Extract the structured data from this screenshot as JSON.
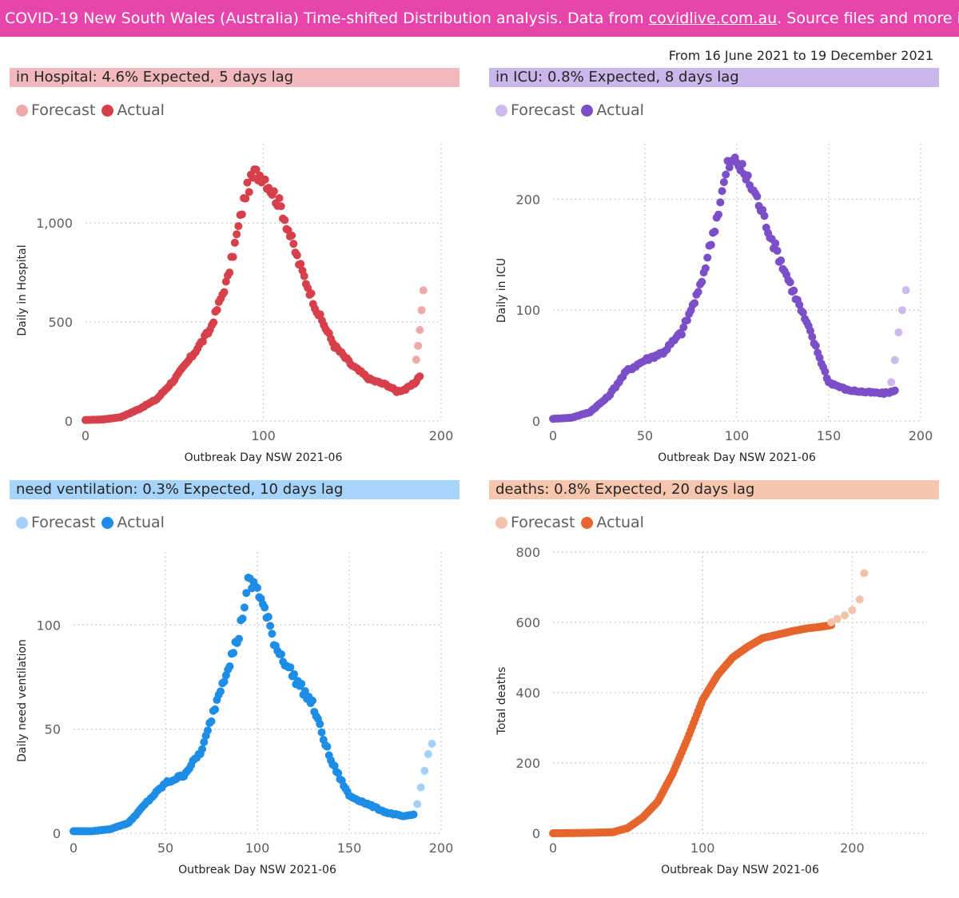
{
  "header": {
    "prefix": "COVID-19 New South Wales (Australia) Time-shifted Distribution analysis. Data from ",
    "link": "covidlive.com.au",
    "suffix": ". Source files and more info on g"
  },
  "date_range": "From 16 June 2021 to 19 December 2021",
  "legend": {
    "forecast": "Forecast",
    "actual": "Actual"
  },
  "colors": {
    "banner": "#e645ab",
    "hospital": {
      "actual": "#d6404a",
      "forecast": "#efa9ab",
      "title_bg": "#f2b9bd"
    },
    "icu": {
      "actual": "#7b4fc8",
      "forecast": "#cdb9ec",
      "title_bg": "#cbb6ec"
    },
    "ventilation": {
      "actual": "#1e8de6",
      "forecast": "#a3d1f7",
      "title_bg": "#a6d4fb"
    },
    "deaths": {
      "actual": "#e5652d",
      "forecast": "#f4c1ab",
      "title_bg": "#f7c6ae"
    }
  },
  "chart_data": [
    {
      "id": "hospital",
      "type": "scatter",
      "title": "in Hospital: 4.6% Expected, 5 days lag",
      "xlabel": "Outbreak Day NSW 2021-06",
      "ylabel": "Daily in Hospital",
      "xlim": [
        0,
        200
      ],
      "ylim": [
        0,
        1400
      ],
      "xticks": [
        0,
        100,
        200
      ],
      "xtick_labels": [
        "0",
        "100",
        "200"
      ],
      "yticks": [
        0,
        500,
        1000
      ],
      "ytick_labels": [
        "0",
        "500",
        "1,000"
      ],
      "grid": true,
      "legend_position": "top-left",
      "series": [
        {
          "name": "Actual",
          "points": [
            [
              0,
              5
            ],
            [
              10,
              8
            ],
            [
              20,
              20
            ],
            [
              30,
              60
            ],
            [
              40,
              110
            ],
            [
              50,
              210
            ],
            [
              60,
              330
            ],
            [
              70,
              460
            ],
            [
              80,
              720
            ],
            [
              90,
              1150
            ],
            [
              95,
              1250
            ],
            [
              100,
              1240
            ],
            [
              110,
              1080
            ],
            [
              120,
              800
            ],
            [
              130,
              560
            ],
            [
              140,
              380
            ],
            [
              150,
              280
            ],
            [
              160,
              210
            ],
            [
              170,
              180
            ],
            [
              175,
              150
            ],
            [
              180,
              160
            ],
            [
              185,
              190
            ],
            [
              188,
              230
            ]
          ]
        },
        {
          "name": "Forecast",
          "points": [
            [
              186,
              310
            ],
            [
              187,
              380
            ],
            [
              188,
              460
            ],
            [
              189,
              560
            ],
            [
              190,
              660
            ]
          ]
        }
      ]
    },
    {
      "id": "icu",
      "type": "scatter",
      "title": "in ICU: 0.8% Expected, 8 days lag",
      "xlabel": "Outbreak Day NSW 2021-06",
      "ylabel": "Daily in ICU",
      "xlim": [
        0,
        200
      ],
      "ylim": [
        0,
        250
      ],
      "xticks": [
        0,
        50,
        100,
        150,
        200
      ],
      "xtick_labels": [
        "0",
        "50",
        "100",
        "150",
        "200"
      ],
      "yticks": [
        0,
        100,
        200
      ],
      "ytick_labels": [
        "0",
        "100",
        "200"
      ],
      "grid": true,
      "legend_position": "top-left",
      "series": [
        {
          "name": "Actual",
          "points": [
            [
              0,
              2
            ],
            [
              10,
              3
            ],
            [
              20,
              8
            ],
            [
              30,
              22
            ],
            [
              40,
              45
            ],
            [
              50,
              55
            ],
            [
              60,
              62
            ],
            [
              70,
              80
            ],
            [
              80,
              120
            ],
            [
              90,
              190
            ],
            [
              95,
              230
            ],
            [
              100,
              235
            ],
            [
              110,
              205
            ],
            [
              120,
              160
            ],
            [
              130,
              120
            ],
            [
              140,
              80
            ],
            [
              150,
              35
            ],
            [
              160,
              28
            ],
            [
              170,
              26
            ],
            [
              180,
              25
            ],
            [
              186,
              27
            ]
          ]
        },
        {
          "name": "Forecast",
          "points": [
            [
              184,
              35
            ],
            [
              186,
              55
            ],
            [
              188,
              80
            ],
            [
              190,
              100
            ],
            [
              192,
              118
            ]
          ]
        }
      ]
    },
    {
      "id": "ventilation",
      "type": "scatter",
      "title": "need ventilation: 0.3% Expected, 10 days lag",
      "xlabel": "Outbreak Day NSW 2021-06",
      "ylabel": "Daily need ventilation",
      "xlim": [
        0,
        200
      ],
      "ylim": [
        0,
        135
      ],
      "xticks": [
        0,
        50,
        100,
        150,
        200
      ],
      "xtick_labels": [
        "0",
        "50",
        "100",
        "150",
        "200"
      ],
      "yticks": [
        0,
        50,
        100
      ],
      "ytick_labels": [
        "0",
        "50",
        "100"
      ],
      "grid": true,
      "legend_position": "top-left",
      "series": [
        {
          "name": "Actual",
          "points": [
            [
              0,
              1
            ],
            [
              10,
              1
            ],
            [
              20,
              2
            ],
            [
              30,
              5
            ],
            [
              40,
              15
            ],
            [
              50,
              24
            ],
            [
              60,
              28
            ],
            [
              70,
              40
            ],
            [
              80,
              70
            ],
            [
              90,
              95
            ],
            [
              95,
              120
            ],
            [
              100,
              118
            ],
            [
              110,
              90
            ],
            [
              120,
              75
            ],
            [
              130,
              62
            ],
            [
              140,
              35
            ],
            [
              150,
              18
            ],
            [
              160,
              14
            ],
            [
              170,
              10
            ],
            [
              180,
              8
            ],
            [
              185,
              9
            ]
          ]
        },
        {
          "name": "Forecast",
          "points": [
            [
              187,
              14
            ],
            [
              189,
              22
            ],
            [
              191,
              30
            ],
            [
              193,
              38
            ],
            [
              195,
              43
            ]
          ]
        }
      ]
    },
    {
      "id": "deaths",
      "type": "scatter",
      "title": "deaths: 0.8% Expected, 20 days lag",
      "xlabel": "Outbreak Day NSW 2021-06",
      "ylabel": "Total deaths",
      "xlim": [
        0,
        250
      ],
      "ylim": [
        0,
        800
      ],
      "xticks": [
        0,
        100,
        200
      ],
      "xtick_labels": [
        "0",
        "100",
        "200"
      ],
      "yticks": [
        0,
        200,
        400,
        600,
        800
      ],
      "ytick_labels": [
        "0",
        "200",
        "400",
        "600",
        "800"
      ],
      "grid": true,
      "legend_position": "top-left",
      "series": [
        {
          "name": "Actual",
          "points": [
            [
              0,
              0
            ],
            [
              20,
              1
            ],
            [
              40,
              3
            ],
            [
              50,
              15
            ],
            [
              60,
              45
            ],
            [
              70,
              90
            ],
            [
              80,
              170
            ],
            [
              90,
              270
            ],
            [
              100,
              380
            ],
            [
              110,
              450
            ],
            [
              120,
              500
            ],
            [
              130,
              530
            ],
            [
              140,
              555
            ],
            [
              150,
              565
            ],
            [
              160,
              575
            ],
            [
              170,
              583
            ],
            [
              180,
              588
            ],
            [
              186,
              592
            ]
          ]
        },
        {
          "name": "Forecast",
          "points": [
            [
              186,
              600
            ],
            [
              190,
              610
            ],
            [
              195,
              620
            ],
            [
              200,
              635
            ],
            [
              205,
              665
            ],
            [
              208,
              740
            ]
          ]
        }
      ]
    }
  ]
}
